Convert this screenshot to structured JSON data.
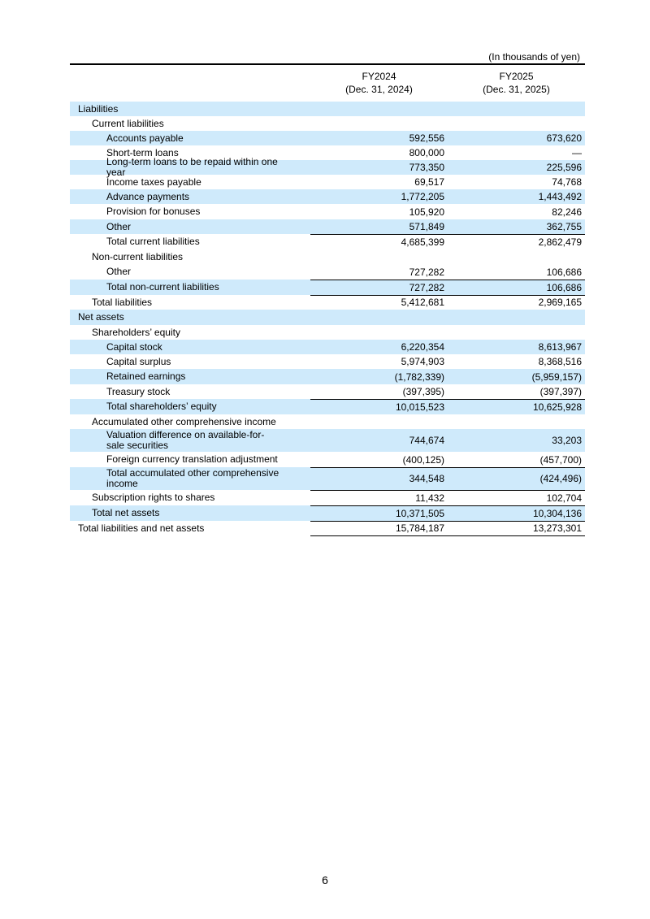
{
  "unit_note": "(In thousands of yen)",
  "columns": [
    [
      "FY2024",
      "(Dec. 31, 2024)"
    ],
    [
      "FY2025",
      "(Dec. 31, 2025)"
    ]
  ],
  "table": {
    "rows": [
      [
        "Liabilities"
      ],
      [
        "Current liabilities"
      ],
      [
        "Accounts payable",
        "592,556",
        "673,620"
      ],
      [
        "Short-term loans",
        "800,000",
        "―"
      ],
      [
        "Long-term loans to be repaid within one year",
        "773,350",
        "225,596"
      ],
      [
        "Income taxes payable",
        "69,517",
        "74,768"
      ],
      [
        "Advance payments",
        "1,772,205",
        "1,443,492"
      ],
      [
        "Provision for bonuses",
        "105,920",
        "82,246"
      ],
      [
        "Other",
        "571,849",
        "362,755"
      ],
      [
        "Total current liabilities",
        "4,685,399",
        "2,862,479"
      ],
      [
        "Non-current liabilities"
      ],
      [
        "Other",
        "727,282",
        "106,686"
      ],
      [
        "Total non-current liabilities",
        "727,282",
        "106,686"
      ],
      [
        "Total liabilities",
        "5,412,681",
        "2,969,165"
      ],
      [
        "Net assets"
      ],
      [
        "Shareholders’ equity"
      ],
      [
        "Capital stock",
        "6,220,354",
        "8,613,967"
      ],
      [
        "Capital surplus",
        "5,974,903",
        "8,368,516"
      ],
      [
        "Retained earnings",
        "(1,782,339)",
        "(5,959,157)"
      ],
      [
        "Treasury stock",
        "(397,395)",
        "(397,397)"
      ],
      [
        "Total shareholders’ equity",
        "10,015,523",
        "10,625,928"
      ],
      [
        "Accumulated other comprehensive income"
      ],
      [
        "Valuation difference on available-for-sale securities",
        "744,674",
        "33,203"
      ],
      [
        "Foreign currency translation adjustment",
        "(400,125)",
        "(457,700)"
      ],
      [
        "Total accumulated other comprehensive income",
        "344,548",
        "(424,496)"
      ],
      [
        "Subscription rights to shares",
        "11,432",
        "102,704"
      ],
      [
        "Total net assets",
        "10,371,505",
        "10,304,136"
      ],
      [
        "Total liabilities and net assets",
        "15,784,187",
        "13,273,301"
      ]
    ]
  },
  "page_number": "6"
}
